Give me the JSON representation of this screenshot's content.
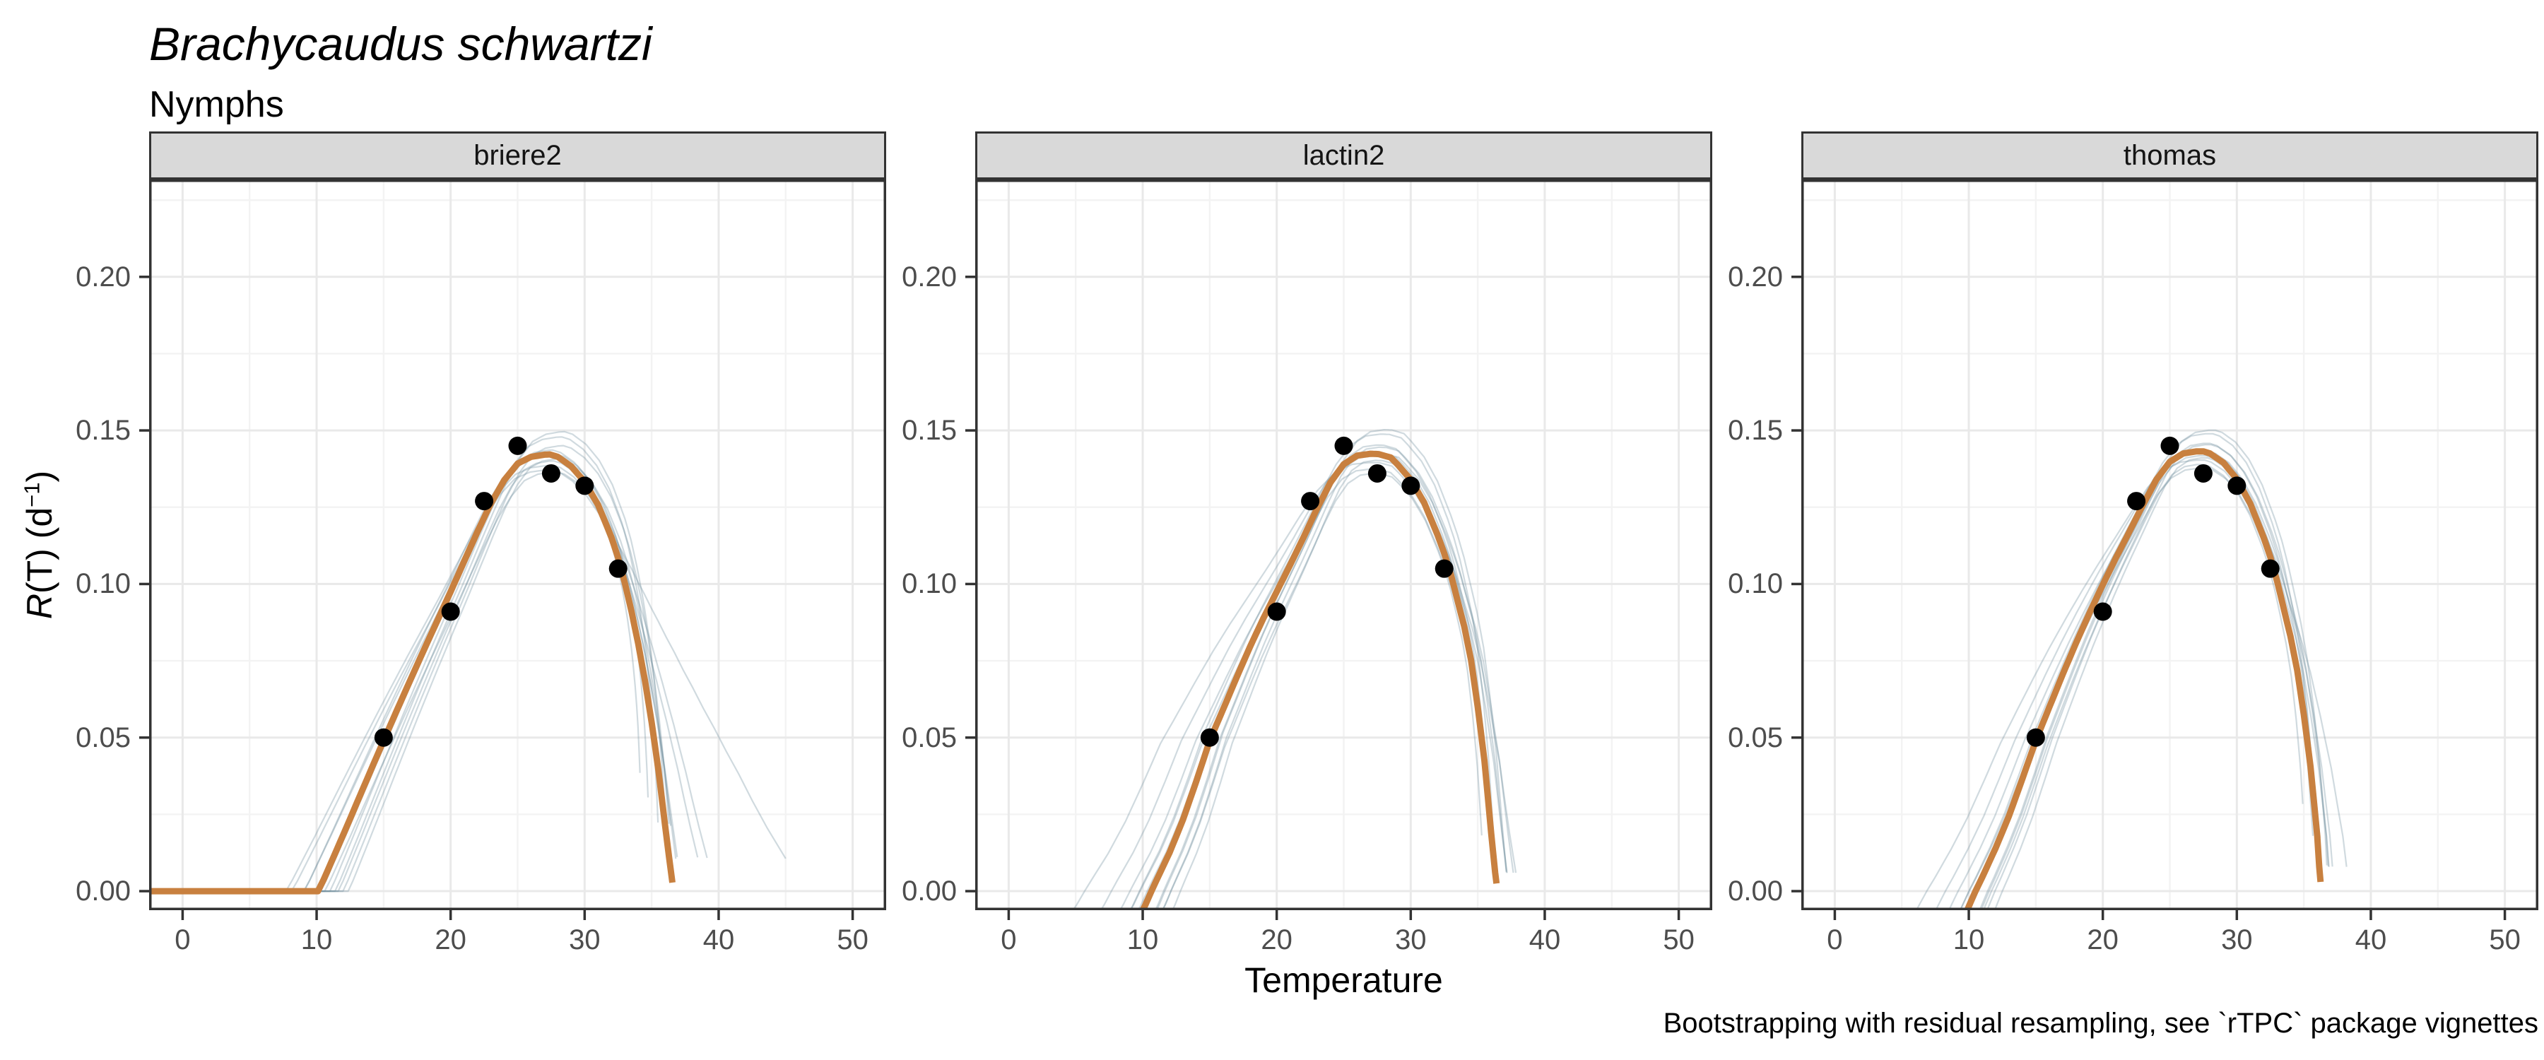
{
  "chart_data": {
    "type": "line+scatter, faceted thermal performance curves with bootstrap resamples",
    "title": "Brachycaudus schwartzi",
    "subtitle": "Nymphs",
    "caption": "Bootstrapping with residual resampling, see `rTPC` package vignettes",
    "facets": [
      {
        "model": "briere2"
      },
      {
        "model": "lactin2"
      },
      {
        "model": "thomas"
      }
    ],
    "x_axis": {
      "label": "Temperature",
      "ticks": [
        0,
        10,
        20,
        30,
        40,
        50
      ],
      "minor_ticks": [
        5,
        15,
        25,
        35,
        45
      ],
      "domain": [
        -2.5,
        52.5
      ]
    },
    "y_axis": {
      "label_r": "R",
      "label_mid": "(T) (d",
      "label_sup": "−1",
      "label_close": ")",
      "tick_labels": [
        "0.00",
        "0.05",
        "0.10",
        "0.15",
        "0.20"
      ],
      "tick_values": [
        0,
        0.05,
        0.1,
        0.15,
        0.2
      ],
      "minor_values": [
        0.025,
        0.075,
        0.125,
        0.175,
        0.225
      ],
      "domain": [
        -0.0062,
        0.2317
      ]
    },
    "observed_points": {
      "temperature": [
        15,
        20,
        22.5,
        25,
        27.5,
        30,
        32.5
      ],
      "rate": [
        0.05,
        0.091,
        0.127,
        0.145,
        0.136,
        0.132,
        0.105
      ]
    },
    "fitted_curves": {
      "briere2": [
        [
          -2.5,
          0
        ],
        [
          2,
          0
        ],
        [
          6,
          0
        ],
        [
          9,
          0
        ],
        [
          9.8,
          0
        ],
        [
          10.1,
          0
        ],
        [
          10.5,
          0.0035
        ],
        [
          11,
          0.0085
        ],
        [
          12,
          0.0185
        ],
        [
          13,
          0.0287
        ],
        [
          14,
          0.0389
        ],
        [
          15,
          0.049
        ],
        [
          16,
          0.059
        ],
        [
          17,
          0.0688
        ],
        [
          18,
          0.0785
        ],
        [
          19,
          0.088
        ],
        [
          20,
          0.0975
        ],
        [
          21,
          0.1073
        ],
        [
          22,
          0.117
        ],
        [
          23,
          0.1262
        ],
        [
          24,
          0.1338
        ],
        [
          25,
          0.1392
        ],
        [
          26,
          0.1414
        ],
        [
          27,
          0.1421
        ],
        [
          27.4,
          0.1422
        ],
        [
          28,
          0.1414
        ],
        [
          29,
          0.1383
        ],
        [
          30,
          0.1333
        ],
        [
          31,
          0.1258
        ],
        [
          32,
          0.1152
        ],
        [
          32.5,
          0.1085
        ],
        [
          33,
          0.1003
        ],
        [
          33.5,
          0.091
        ],
        [
          34,
          0.0805
        ],
        [
          34.5,
          0.0685
        ],
        [
          35,
          0.055
        ],
        [
          35.5,
          0.0395
        ],
        [
          36,
          0.0215
        ],
        [
          36.3,
          0.011
        ],
        [
          36.55,
          0.0028
        ]
      ],
      "lactin2": [
        [
          9.9,
          -0.007
        ],
        [
          10.2,
          -0.0045
        ],
        [
          10.65,
          0
        ],
        [
          11,
          0.0033
        ],
        [
          12,
          0.0125
        ],
        [
          13,
          0.0232
        ],
        [
          14,
          0.0358
        ],
        [
          15,
          0.049
        ],
        [
          16,
          0.0592
        ],
        [
          17,
          0.0695
        ],
        [
          18,
          0.0795
        ],
        [
          19,
          0.0888
        ],
        [
          20,
          0.0975
        ],
        [
          21,
          0.1062
        ],
        [
          22,
          0.1152
        ],
        [
          23,
          0.1245
        ],
        [
          24,
          0.133
        ],
        [
          25,
          0.139
        ],
        [
          26,
          0.1418
        ],
        [
          27,
          0.1424
        ],
        [
          27.6,
          0.1423
        ],
        [
          28.5,
          0.1412
        ],
        [
          29,
          0.139
        ],
        [
          30,
          0.134
        ],
        [
          31,
          0.1265
        ],
        [
          32,
          0.116
        ],
        [
          32.5,
          0.11
        ],
        [
          33,
          0.103
        ],
        [
          34,
          0.086
        ],
        [
          34.5,
          0.0752
        ],
        [
          35,
          0.06
        ],
        [
          35.5,
          0.0425
        ],
        [
          36,
          0.019
        ],
        [
          36.3,
          0.006
        ],
        [
          36.4,
          0.0025
        ]
      ],
      "thomas": [
        [
          9.8,
          -0.007
        ],
        [
          10.1,
          -0.004
        ],
        [
          10.5,
          0
        ],
        [
          11,
          0.0045
        ],
        [
          12,
          0.014
        ],
        [
          13,
          0.0245
        ],
        [
          14,
          0.0366
        ],
        [
          15,
          0.049
        ],
        [
          16,
          0.0598
        ],
        [
          17,
          0.0705
        ],
        [
          18,
          0.0808
        ],
        [
          19,
          0.0905
        ],
        [
          20,
          0.0998
        ],
        [
          21,
          0.1087
        ],
        [
          22,
          0.1172
        ],
        [
          23,
          0.1258
        ],
        [
          24,
          0.134
        ],
        [
          25,
          0.1398
        ],
        [
          26,
          0.1425
        ],
        [
          27,
          0.1432
        ],
        [
          27.5,
          0.1432
        ],
        [
          28,
          0.1425
        ],
        [
          29,
          0.1395
        ],
        [
          30,
          0.1342
        ],
        [
          31,
          0.1262
        ],
        [
          32,
          0.1152
        ],
        [
          32.5,
          0.1088
        ],
        [
          33,
          0.101
        ],
        [
          34,
          0.083
        ],
        [
          34.5,
          0.072
        ],
        [
          35,
          0.0575
        ],
        [
          35.5,
          0.0405
        ],
        [
          36,
          0.018
        ],
        [
          36.15,
          0.008
        ],
        [
          36.25,
          0.003
        ]
      ]
    },
    "bootstrap": {
      "description": "thin pale resampled curves behind the fitted line; params per curve: [peak_scale, left_stretch, right_stretch, cutoff_rate, x_shift]",
      "peak_temperature": {
        "briere2": 27.4,
        "lactin2": 27.6,
        "thomas": 27.5
      },
      "variants": {
        "briere2": [
          [
            0.975,
            1.15,
            0.72,
            0.035,
            0.2
          ],
          [
            1.0,
            1.09,
            0.76,
            0.028,
            0.5
          ],
          [
            1.04,
            1.04,
            0.8,
            0.022,
            0.9
          ],
          [
            1.052,
            0.99,
            0.85,
            0.016,
            1.1
          ],
          [
            1.02,
            0.95,
            0.9,
            0.02,
            1.0
          ],
          [
            0.99,
            0.91,
            0.96,
            0.012,
            0.7
          ],
          [
            0.96,
            1.0,
            1.0,
            0.01,
            0.5
          ],
          [
            1.01,
            0.96,
            1.05,
            0.006,
            0.2
          ],
          [
            1.0,
            1.06,
            1.26,
            0.004,
            0.0
          ],
          [
            0.985,
            0.93,
            1.31,
            0.004,
            0.3
          ],
          [
            0.965,
            1.12,
            2.05,
            0.003,
            0.1
          ]
        ],
        "lactin2": [
          [
            0.98,
            1.3,
            0.99,
            0.005,
            0.1
          ],
          [
            1.0,
            1.2,
            0.93,
            0.008,
            0.4
          ],
          [
            1.045,
            1.1,
            0.91,
            0.01,
            0.8
          ],
          [
            1.055,
            1.0,
            0.98,
            0.006,
            1.0
          ],
          [
            1.015,
            0.95,
            1.03,
            0.005,
            0.6
          ],
          [
            0.985,
            0.89,
            1.07,
            0.005,
            0.3
          ],
          [
            0.965,
            1.05,
            1.01,
            0.012,
            0.0
          ],
          [
            1.02,
            0.97,
            0.95,
            0.014,
            0.4
          ],
          [
            1.0,
            1.13,
            1.09,
            0.004,
            0.6
          ],
          [
            0.955,
            0.92,
            0.89,
            0.018,
            0.1
          ],
          [
            0.995,
            1.03,
            1.16,
            0.003,
            0.2
          ]
        ],
        "thomas": [
          [
            0.98,
            1.22,
            0.97,
            0.006,
            0.1
          ],
          [
            1.0,
            1.15,
            0.92,
            0.01,
            0.3
          ],
          [
            1.04,
            1.07,
            0.9,
            0.012,
            0.7
          ],
          [
            1.048,
            1.0,
            0.96,
            0.008,
            0.9
          ],
          [
            1.015,
            0.95,
            1.01,
            0.006,
            0.6
          ],
          [
            0.985,
            0.9,
            1.05,
            0.006,
            0.3
          ],
          [
            0.962,
            1.04,
            1.0,
            0.012,
            0.2
          ],
          [
            1.018,
            0.97,
            0.94,
            0.014,
            0.5
          ],
          [
            1.0,
            1.1,
            1.07,
            0.004,
            0.4
          ],
          [
            0.99,
            1.01,
            1.22,
            0.003,
            0.2
          ],
          [
            0.97,
            0.93,
            0.88,
            0.02,
            0.0
          ]
        ]
      }
    },
    "colors": {
      "fit_line": "#C8803F",
      "bootstrap_line": "#6D8C9C",
      "bootstrap_opacity": 0.32,
      "point": "#000000",
      "grid_major": "#E9E9E9",
      "grid_minor": "#F3F3F3",
      "panel_border": "#333333",
      "strip_background": "#D9D9D9",
      "tick_text": "#4D4D4D",
      "axis_tick": "#333333"
    }
  }
}
